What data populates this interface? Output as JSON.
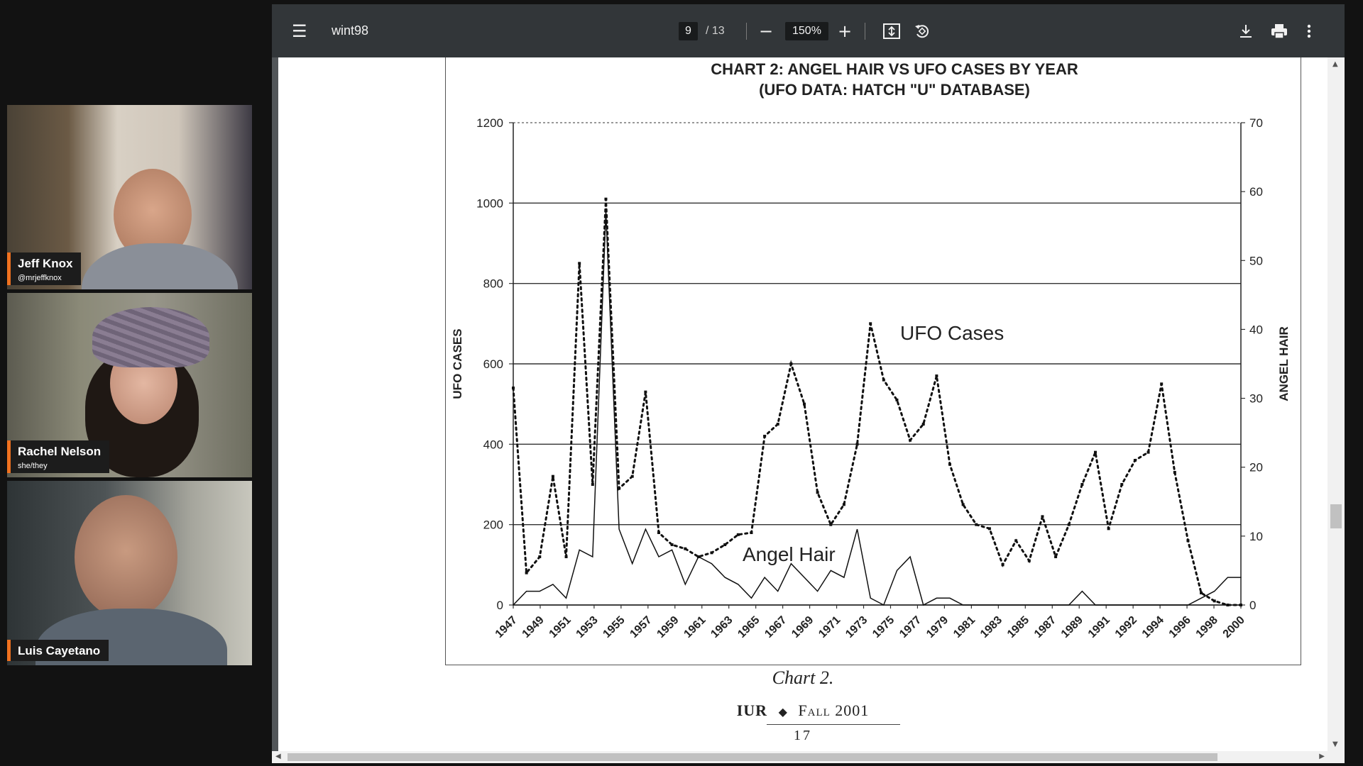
{
  "participants": [
    {
      "name": "Jeff Knox",
      "handle": "@mrjeffknox"
    },
    {
      "name": "Rachel Nelson",
      "handle": "she/they"
    },
    {
      "name": "Luis Cayetano",
      "handle": ""
    }
  ],
  "viewer": {
    "title": "wint98",
    "page_current": "9",
    "page_total": "/ 13",
    "zoom": "150%",
    "icons": {
      "menu": "menu-icon",
      "zoom_out": "minus-icon",
      "zoom_in": "plus-icon",
      "fit": "fit-page-icon",
      "rotate": "rotate-icon",
      "download": "download-icon",
      "print": "print-icon",
      "more": "more-vert-icon"
    }
  },
  "document": {
    "caption": "Chart 2.",
    "footer_left": "IUR",
    "footer_right": "Fall 2001",
    "page_number": "17"
  },
  "chart_data": {
    "type": "line",
    "title": "CHART 2:  ANGEL HAIR VS UFO CASES BY YEAR",
    "subtitle": "(UFO DATA: HATCH \"U\" DATABASE)",
    "ylabel": "UFO CASES",
    "y2label": "ANGEL HAIR",
    "ylim": [
      0,
      1200
    ],
    "y2lim": [
      0,
      70
    ],
    "yticks": [
      0,
      200,
      400,
      600,
      800,
      1000,
      1200
    ],
    "y2ticks": [
      0,
      10,
      20,
      30,
      40,
      50,
      60,
      70
    ],
    "xtick_labels": [
      "1947",
      "1949",
      "1951",
      "1953",
      "1955",
      "1957",
      "1959",
      "1961",
      "1963",
      "1965",
      "1967",
      "1969",
      "1971",
      "1973",
      "1975",
      "1977",
      "1979",
      "1981",
      "1983",
      "1985",
      "1987",
      "1989",
      "1991",
      "1992",
      "1994",
      "1996",
      "1998",
      "2000"
    ],
    "annotations": [
      "UFO Cases",
      "Angel Hair"
    ],
    "series": [
      {
        "name": "UFO Cases",
        "axis": "left",
        "style": "dotted",
        "values": [
          540,
          80,
          120,
          320,
          120,
          850,
          300,
          1010,
          290,
          320,
          530,
          180,
          150,
          140,
          120,
          130,
          150,
          175,
          180,
          420,
          450,
          600,
          500,
          280,
          200,
          250,
          400,
          700,
          560,
          510,
          410,
          450,
          570,
          350,
          250,
          200,
          190,
          100,
          160,
          110,
          220,
          120,
          200,
          300,
          380,
          190,
          300,
          360,
          380,
          550,
          330,
          160,
          30,
          10,
          0,
          0
        ]
      },
      {
        "name": "Angel Hair",
        "axis": "right",
        "style": "solid",
        "values": [
          0,
          2,
          2,
          3,
          1,
          8,
          7,
          57,
          11,
          6,
          11,
          7,
          8,
          3,
          7,
          6,
          4,
          3,
          1,
          4,
          2,
          6,
          4,
          2,
          5,
          4,
          11,
          1,
          0,
          5,
          7,
          0,
          1,
          1,
          0,
          0,
          0,
          0,
          0,
          0,
          0,
          0,
          0,
          2,
          0,
          0,
          0,
          0,
          0,
          0,
          0,
          0,
          1,
          2,
          4,
          4
        ]
      }
    ],
    "gridlines": "left-axis steps 200, interrupted where series cross"
  }
}
